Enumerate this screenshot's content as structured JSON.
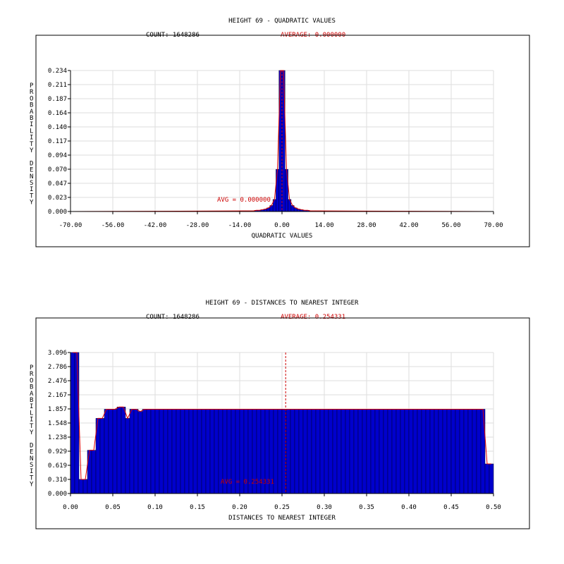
{
  "chart_data": [
    {
      "type": "bar",
      "title": "HEIGHT 69 - QUADRATIC VALUES",
      "count_text": "COUNT: 1648286",
      "average_text": "AVERAGE: 0.000000",
      "avg_label": "AVG = 0.000000",
      "avg_value": 0.0,
      "xlabel": "QUADRATIC VALUES",
      "ylabel": "PROBABILITY DENSITY",
      "xlim": [
        -70,
        70
      ],
      "ylim": [
        0,
        0.234
      ],
      "xticks": [
        "-70.00",
        "-56.00",
        "-42.00",
        "-28.00",
        "-14.00",
        "0.00",
        "14.00",
        "28.00",
        "42.00",
        "56.00",
        "70.00"
      ],
      "yticks": [
        "0.000",
        "0.023",
        "0.047",
        "0.070",
        "0.094",
        "0.117",
        "0.140",
        "0.164",
        "0.187",
        "0.211",
        "0.234"
      ],
      "bin_width": 1,
      "bins": [
        {
          "x": -14,
          "v": 0.001
        },
        {
          "x": -13,
          "v": 0.001
        },
        {
          "x": -12,
          "v": 0.001
        },
        {
          "x": -11,
          "v": 0.001
        },
        {
          "x": -10,
          "v": 0.001
        },
        {
          "x": -9,
          "v": 0.002
        },
        {
          "x": -8,
          "v": 0.002
        },
        {
          "x": -7,
          "v": 0.003
        },
        {
          "x": -6,
          "v": 0.004
        },
        {
          "x": -5,
          "v": 0.006
        },
        {
          "x": -4,
          "v": 0.01
        },
        {
          "x": -3,
          "v": 0.02
        },
        {
          "x": -2,
          "v": 0.07
        },
        {
          "x": -1,
          "v": 0.234
        },
        {
          "x": 0,
          "v": 0.234
        },
        {
          "x": 1,
          "v": 0.07
        },
        {
          "x": 2,
          "v": 0.02
        },
        {
          "x": 3,
          "v": 0.01
        },
        {
          "x": 4,
          "v": 0.006
        },
        {
          "x": 5,
          "v": 0.004
        },
        {
          "x": 6,
          "v": 0.003
        },
        {
          "x": 7,
          "v": 0.002
        },
        {
          "x": 8,
          "v": 0.002
        },
        {
          "x": 9,
          "v": 0.001
        },
        {
          "x": 10,
          "v": 0.001
        },
        {
          "x": 11,
          "v": 0.001
        },
        {
          "x": 12,
          "v": 0.001
        }
      ]
    },
    {
      "type": "bar",
      "title": "HEIGHT 69 - DISTANCES TO NEAREST INTEGER",
      "count_text": "COUNT: 1648286",
      "average_text": "AVERAGE: 0.254331",
      "avg_label": "AVG = 0.254331",
      "avg_value": 0.254331,
      "xlabel": "DISTANCES TO NEAREST INTEGER",
      "ylabel": "PROBABILITY DENSITY",
      "xlim": [
        0,
        0.5
      ],
      "ylim": [
        0,
        3.096
      ],
      "xticks": [
        "0.00",
        "0.05",
        "0.10",
        "0.15",
        "0.20",
        "0.25",
        "0.30",
        "0.35",
        "0.40",
        "0.45",
        "0.50"
      ],
      "yticks": [
        "0.000",
        "0.310",
        "0.619",
        "0.929",
        "1.238",
        "1.548",
        "1.857",
        "2.167",
        "2.476",
        "2.786",
        "3.096"
      ],
      "bin_width": 0.005,
      "bin_start": 0,
      "values": [
        3.096,
        3.096,
        0.31,
        0.31,
        0.95,
        0.95,
        1.65,
        1.65,
        1.85,
        1.85,
        1.85,
        1.9,
        1.9,
        1.65,
        1.85,
        1.85,
        1.8,
        1.85,
        1.85,
        1.85,
        1.85,
        1.85,
        1.85,
        1.85,
        1.85,
        1.85,
        1.85,
        1.85,
        1.85,
        1.85,
        1.85,
        1.85,
        1.85,
        1.85,
        1.85,
        1.85,
        1.85,
        1.85,
        1.85,
        1.85,
        1.85,
        1.85,
        1.85,
        1.85,
        1.85,
        1.85,
        1.85,
        1.85,
        1.85,
        1.85,
        1.85,
        1.85,
        1.85,
        1.85,
        1.85,
        1.85,
        1.85,
        1.85,
        1.85,
        1.85,
        1.85,
        1.85,
        1.85,
        1.85,
        1.85,
        1.85,
        1.85,
        1.85,
        1.85,
        1.85,
        1.85,
        1.85,
        1.85,
        1.85,
        1.85,
        1.85,
        1.85,
        1.85,
        1.85,
        1.85,
        1.85,
        1.85,
        1.85,
        1.85,
        1.85,
        1.85,
        1.85,
        1.85,
        1.85,
        1.85,
        1.85,
        1.85,
        1.85,
        1.85,
        1.85,
        1.85,
        1.85,
        1.85,
        0.65,
        0.65
      ]
    }
  ]
}
